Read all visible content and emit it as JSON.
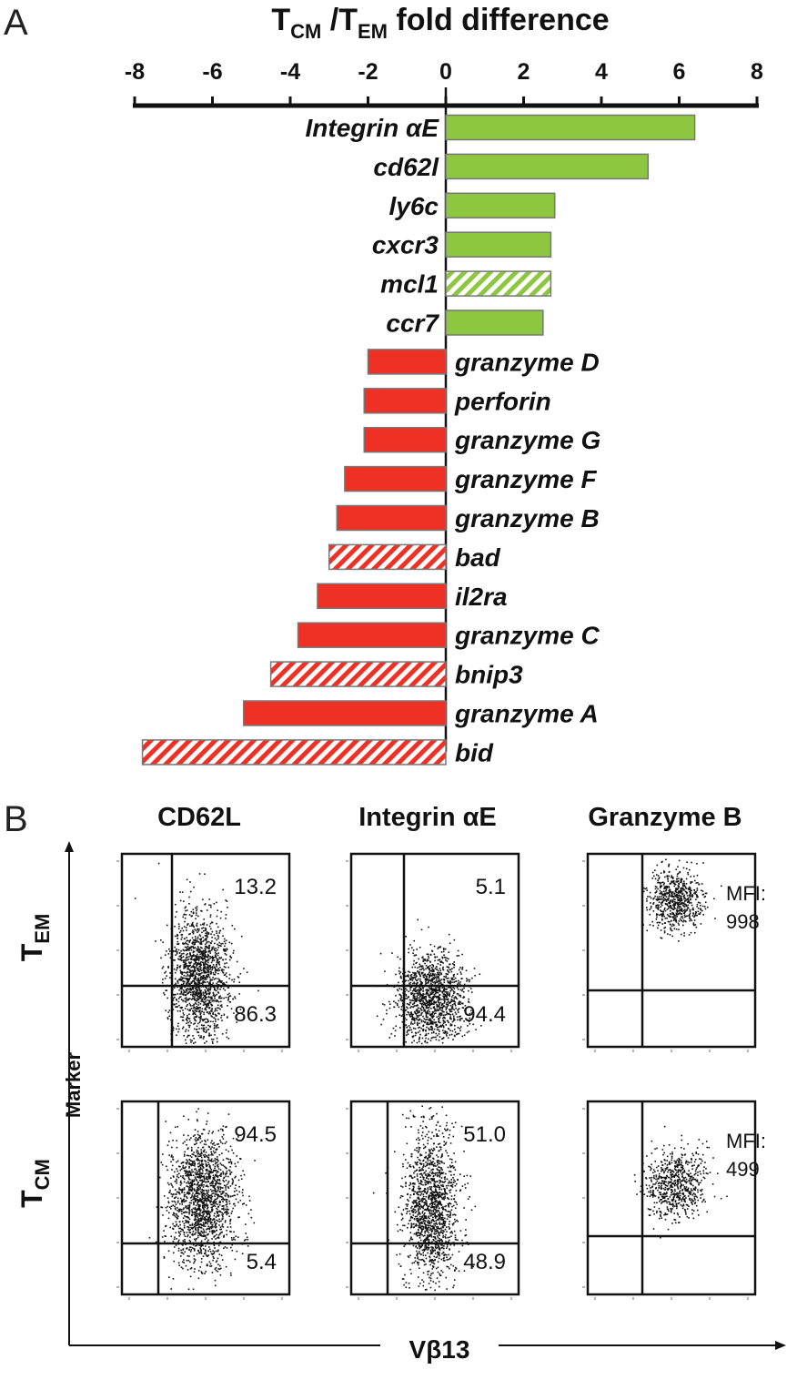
{
  "panel_a": {
    "panel_letter": "A",
    "title_main": "T",
    "title_sub1": "CM",
    "title_mid": " /T",
    "title_sub2": "EM",
    "title_end": " fold difference"
  },
  "panel_b": {
    "panel_letter": "B",
    "columns": [
      "CD62L",
      "Integrin αE",
      "Granzyme B"
    ],
    "row_labels": [
      {
        "main": "T",
        "sub": "EM"
      },
      {
        "main": "T",
        "sub": "CM"
      }
    ],
    "y_axis_label": "Marker",
    "x_axis_label": "Vβ13",
    "plots": [
      {
        "row": 0,
        "col": 0,
        "label_top": "13.2",
        "label_bottom": "86.3"
      },
      {
        "row": 0,
        "col": 1,
        "label_top": "5.1",
        "label_bottom": "94.4"
      },
      {
        "row": 0,
        "col": 2,
        "label_top": "MFI:",
        "label_bottom": "998"
      },
      {
        "row": 1,
        "col": 0,
        "label_top": "94.5",
        "label_bottom": "5.4"
      },
      {
        "row": 1,
        "col": 1,
        "label_top": "51.0",
        "label_bottom": "48.9"
      },
      {
        "row": 1,
        "col": 2,
        "label_top": "MFI:",
        "label_bottom": "499"
      }
    ]
  },
  "colors": {
    "up": "#8dc63f",
    "down": "#ee3124",
    "axis": "#111111"
  },
  "chart_data": [
    {
      "type": "bar",
      "orientation": "horizontal",
      "title": "TCM /TEM fold difference",
      "xlim": [
        -8,
        8
      ],
      "xticks": [
        -8,
        -6,
        -4,
        -2,
        0,
        2,
        4,
        6,
        8
      ],
      "axis_position": "top",
      "bars": [
        {
          "label": "Integrin αE",
          "value": 6.4,
          "hatched": false
        },
        {
          "label": "cd62l",
          "value": 5.2,
          "hatched": false
        },
        {
          "label": "ly6c",
          "value": 2.8,
          "hatched": false
        },
        {
          "label": "cxcr3",
          "value": 2.7,
          "hatched": false
        },
        {
          "label": "mcl1",
          "value": 2.7,
          "hatched": true
        },
        {
          "label": "ccr7",
          "value": 2.5,
          "hatched": false
        },
        {
          "label": "granzyme D",
          "value": -2.0,
          "hatched": false
        },
        {
          "label": "perforin",
          "value": -2.1,
          "hatched": false
        },
        {
          "label": "granzyme G",
          "value": -2.1,
          "hatched": false
        },
        {
          "label": "granzyme F",
          "value": -2.6,
          "hatched": false
        },
        {
          "label": "granzyme B",
          "value": -2.8,
          "hatched": false
        },
        {
          "label": "bad",
          "value": -3.0,
          "hatched": true
        },
        {
          "label": "il2ra",
          "value": -3.3,
          "hatched": false
        },
        {
          "label": "granzyme C",
          "value": -3.8,
          "hatched": false
        },
        {
          "label": "bnip3",
          "value": -4.5,
          "hatched": true
        },
        {
          "label": "granzyme A",
          "value": -5.2,
          "hatched": false
        },
        {
          "label": "bid",
          "value": -7.8,
          "hatched": true
        }
      ]
    },
    {
      "type": "scatter",
      "subtype": "flow cytometry dot plots",
      "x_label": "Vβ13",
      "y_label": "Marker",
      "columns": [
        "CD62L",
        "Integrin αE",
        "Granzyme B"
      ],
      "rows": [
        "TEM",
        "TCM"
      ],
      "quadrant_values": [
        {
          "row": "TEM",
          "column": "CD62L",
          "upper_right": 13.2,
          "lower_right": 86.3
        },
        {
          "row": "TEM",
          "column": "Integrin αE",
          "upper_right": 5.1,
          "lower_right": 94.4
        },
        {
          "row": "TEM",
          "column": "Granzyme B",
          "MFI": 998
        },
        {
          "row": "TCM",
          "column": "CD62L",
          "upper_right": 94.5,
          "lower_right": 5.4
        },
        {
          "row": "TCM",
          "column": "Integrin αE",
          "upper_right": 51.0,
          "lower_right": 48.9
        },
        {
          "row": "TCM",
          "column": "Granzyme B",
          "MFI": 499
        }
      ]
    }
  ]
}
